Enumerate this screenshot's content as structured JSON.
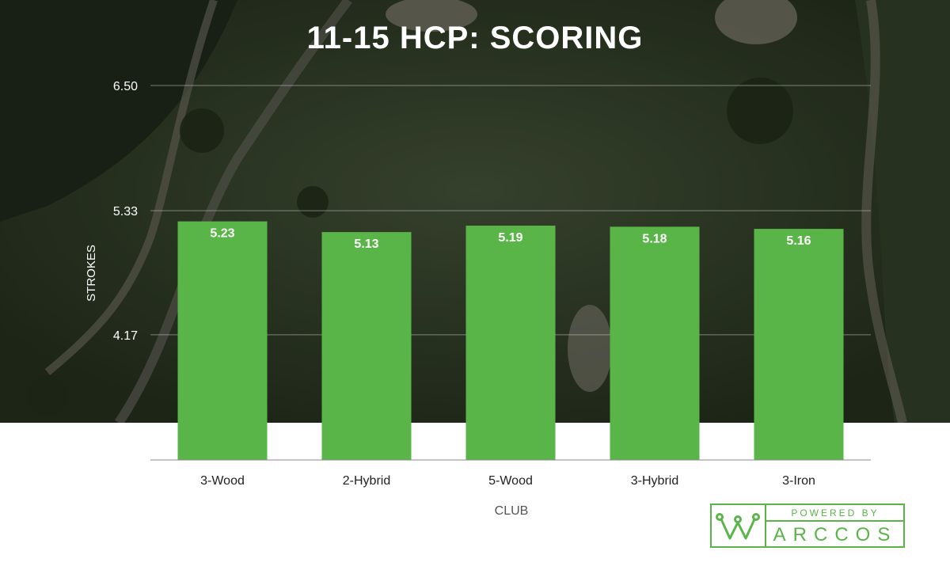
{
  "title": "11-15 HCP: SCORING",
  "logo": {
    "powered_by": "POWERED BY",
    "brand": "ARCCOS"
  },
  "chart_data": {
    "type": "bar",
    "title": "11-15 HCP: SCORING",
    "xlabel": "CLUB",
    "ylabel": "STROKES",
    "categories": [
      "3-Wood",
      "2-Hybrid",
      "5-Wood",
      "3-Hybrid",
      "3-Iron"
    ],
    "values": [
      5.23,
      5.13,
      5.19,
      5.18,
      5.16
    ],
    "ylim": [
      3.0,
      6.5
    ],
    "yticks": [
      "4.17",
      "5.33",
      "6.50"
    ],
    "grid": true,
    "bar_color": "#5ab548"
  }
}
